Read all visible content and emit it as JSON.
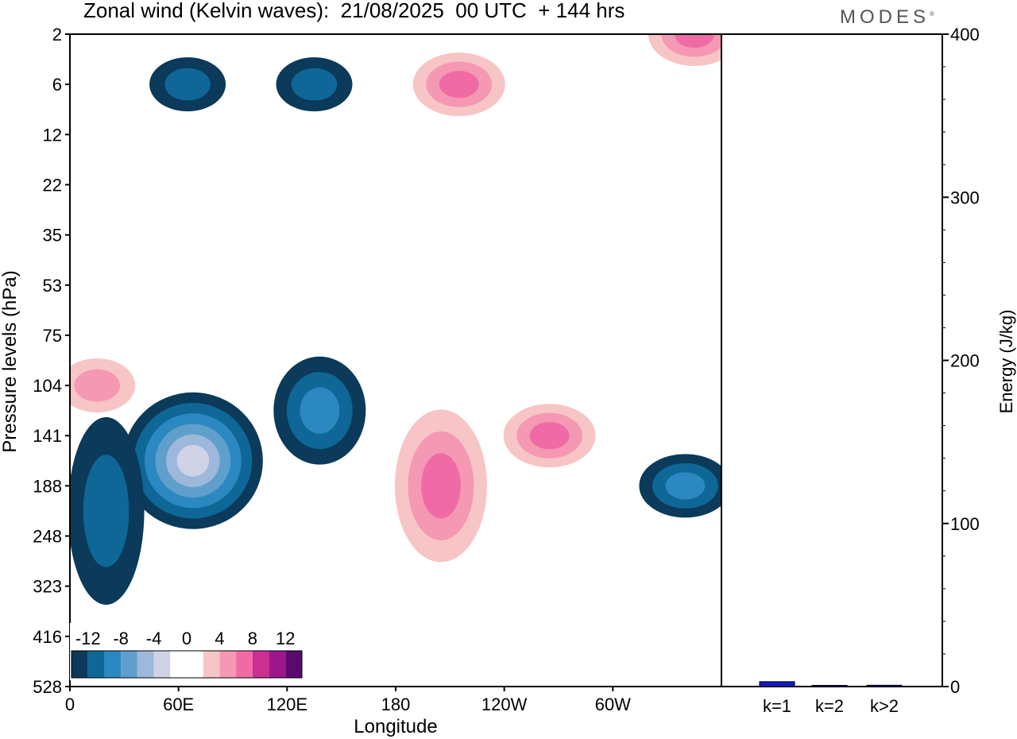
{
  "header": {
    "title": "Zonal wind (Kelvin waves):  21/08/2025  00 UTC  + 144 hrs",
    "logo": "MODES",
    "logo_mark": "®"
  },
  "colors": {
    "neg": [
      "#0b3a5a",
      "#0e6797",
      "#2b88c0",
      "#5f9fcb",
      "#9db8da",
      "#d0d3e6"
    ],
    "zero": "#ffffff",
    "pos": [
      "#f7c5c5",
      "#f598b3",
      "#f06ba6",
      "#cc2f92",
      "#9d178c",
      "#5a0a6e"
    ],
    "bar": "#1418c8"
  },
  "chart_data": [
    {
      "type": "heatmap",
      "title": "Zonal wind (Kelvin waves):  21/08/2025  00 UTC  + 144 hrs",
      "xlabel": "Longitude",
      "ylabel": "Pressure levels (hPa)",
      "x_ticks": [
        "0",
        "60E",
        "120E",
        "180",
        "120W",
        "60W"
      ],
      "x_range_deg_east": [
        0,
        360
      ],
      "y_ticks": [
        "2",
        "6",
        "12",
        "22",
        "35",
        "53",
        "75",
        "104",
        "141",
        "188",
        "248",
        "323",
        "416",
        "528"
      ],
      "y_axis": "pressure, top to bottom",
      "colorbar": {
        "levels": [
          -14,
          -12,
          -10,
          -8,
          -6,
          -4,
          -2,
          2,
          4,
          6,
          8,
          10,
          12,
          14
        ],
        "tick_labels": [
          "-12",
          "-8",
          "-4",
          "0",
          "4",
          "8",
          "12"
        ],
        "location": "bottom-left"
      },
      "features": [
        {
          "lon": 68,
          "level": "141-188",
          "value": -13
        },
        {
          "lon": 138,
          "level": "104-141",
          "value": -7
        },
        {
          "lon": 20,
          "level": "141-323",
          "value": -5
        },
        {
          "lon": 340,
          "level": "188",
          "value": -7
        },
        {
          "lon": 205,
          "level": "141-248",
          "value": 7
        },
        {
          "lon": 265,
          "level": "141",
          "value": 6
        },
        {
          "lon": 15,
          "level": "104",
          "value": 5
        },
        {
          "lon": 215,
          "level": "6",
          "value": 6
        },
        {
          "lon": 345,
          "level": "2",
          "value": 6
        },
        {
          "lon": 65,
          "level": "6",
          "value": -5
        },
        {
          "lon": 135,
          "level": "6",
          "value": -5
        }
      ]
    },
    {
      "type": "bar",
      "categories": [
        "k=1",
        "k=2",
        "k>2"
      ],
      "values": [
        3,
        0.3,
        0.8
      ],
      "ylabel": "Energy (J/kg)",
      "ylim": [
        0,
        400
      ],
      "y_ticks": [
        0,
        100,
        200,
        300,
        400
      ]
    }
  ]
}
